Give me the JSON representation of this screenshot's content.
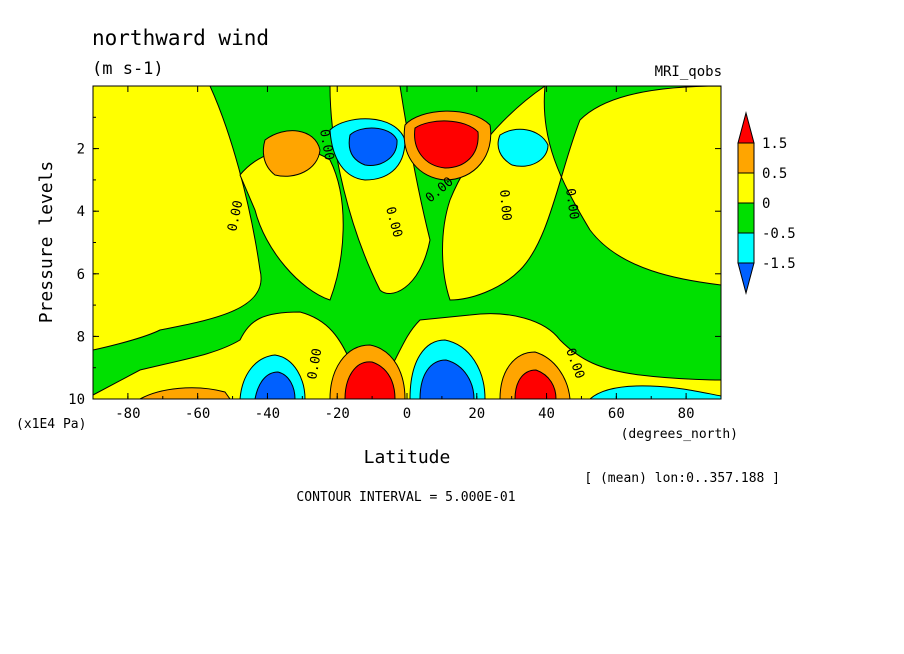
{
  "figure": {
    "title": "northward wind",
    "units": "(m s-1)",
    "dataset": "MRI_qobs",
    "mean_note": "[ (mean) lon:0..357.188 ]",
    "contour_interval": "CONTOUR INTERVAL = 5.000E-01"
  },
  "chart_data": {
    "type": "heatmap",
    "xlabel": "Latitude",
    "x_units": "(degrees_north)",
    "ylabel": "Pressure levels",
    "y_units": "(x1E4 Pa)",
    "xlim": [
      -90,
      90
    ],
    "ylim": [
      10,
      0
    ],
    "x_ticks": [
      -80,
      -60,
      -40,
      -20,
      0,
      20,
      40,
      60,
      80
    ],
    "y_ticks": [
      2,
      4,
      6,
      8,
      10
    ],
    "colorbar": {
      "levels": [
        "1.5",
        "0.5",
        "0",
        "-0.5",
        "-1.5"
      ],
      "colors": [
        "#ff0000",
        "#ffa500",
        "#ffff00",
        "#00e000",
        "#00ffff",
        "#0060ff"
      ]
    },
    "contour_labels": [
      "0.00",
      "0.00",
      "0.00",
      "0.00",
      "0.00",
      "0.00",
      "0.00",
      "0.00"
    ],
    "features": [
      {
        "lat": 10,
        "p": 2.0,
        "value": 2.5
      },
      {
        "lat": -10,
        "p": 2.0,
        "value": -1.8
      },
      {
        "lat": 35,
        "p": 2.0,
        "value": -0.6
      },
      {
        "lat": -35,
        "p": 2.0,
        "value": 0.7
      },
      {
        "lat": -10,
        "p": 9.3,
        "value": 2.2
      },
      {
        "lat": 10,
        "p": 9.3,
        "value": -2.0
      },
      {
        "lat": 35,
        "p": 9.3,
        "value": 1.8
      },
      {
        "lat": -35,
        "p": 9.5,
        "value": -1.6
      }
    ]
  }
}
